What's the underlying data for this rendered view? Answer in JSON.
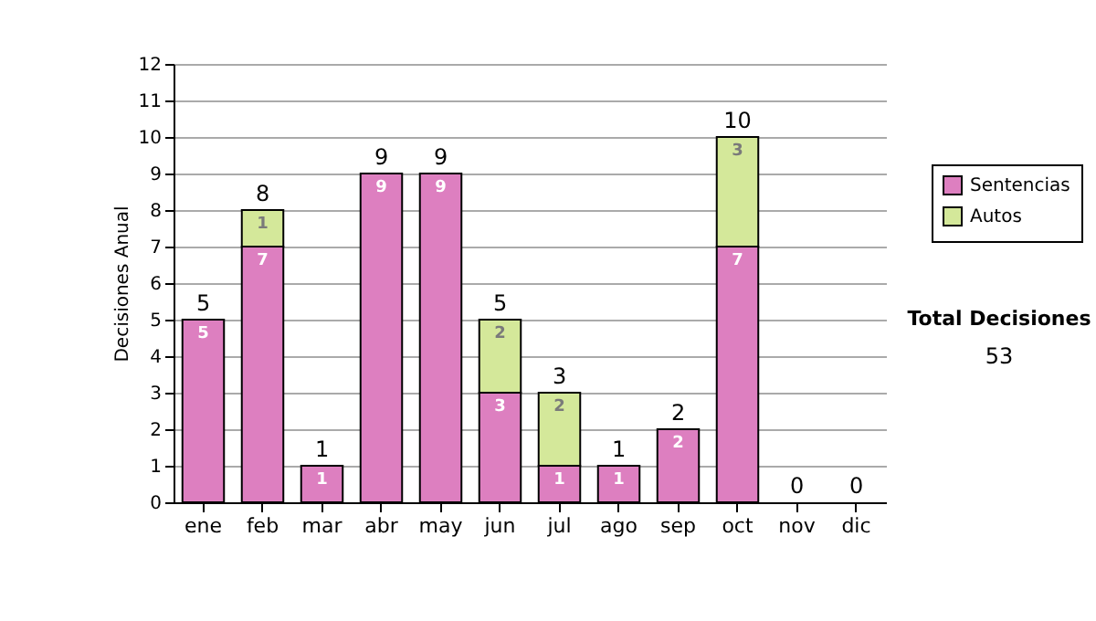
{
  "chart_data": {
    "type": "bar",
    "stacked": true,
    "ylabel": "Decisiones Anual",
    "categories": [
      "ene",
      "feb",
      "mar",
      "abr",
      "may",
      "jun",
      "jul",
      "ago",
      "sep",
      "oct",
      "nov",
      "dic"
    ],
    "series": [
      {
        "name": "Sentencias",
        "color": "#dd7fc0",
        "values": [
          5,
          7,
          1,
          9,
          9,
          3,
          1,
          1,
          2,
          7,
          0,
          0
        ],
        "value_labels": [
          "5",
          "7",
          "1",
          "9",
          "9",
          "3",
          "1",
          "1",
          "2",
          "7",
          null,
          null
        ]
      },
      {
        "name": "Autos",
        "color": "#d4e89a",
        "values": [
          0,
          1,
          0,
          0,
          0,
          2,
          2,
          0,
          0,
          3,
          0,
          0
        ],
        "value_labels": [
          null,
          "1",
          null,
          null,
          null,
          "2",
          "2",
          null,
          null,
          "3",
          null,
          null
        ]
      }
    ],
    "totals": [
      "5",
      "8",
      "1",
      "9",
      "9",
      "5",
      "3",
      "1",
      "2",
      "10",
      "0",
      "0"
    ],
    "ylim": [
      0,
      12
    ],
    "yticks": [
      0,
      1,
      2,
      3,
      4,
      5,
      6,
      7,
      8,
      9,
      10,
      11,
      12
    ],
    "grid": "y",
    "legend": "right",
    "annotations": [
      "Total Decisiones",
      "53"
    ]
  }
}
